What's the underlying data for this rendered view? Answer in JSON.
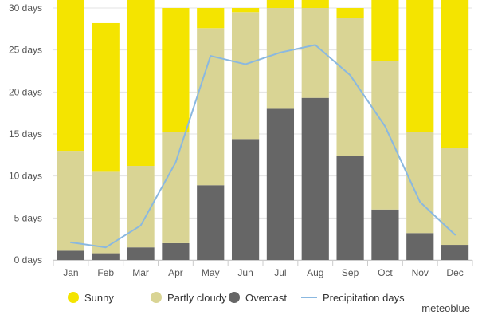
{
  "chart_data": {
    "type": "bar",
    "stacked": true,
    "categories": [
      "Jan",
      "Feb",
      "Mar",
      "Apr",
      "May",
      "Jun",
      "Jul",
      "Aug",
      "Sep",
      "Oct",
      "Nov",
      "Dec"
    ],
    "series": [
      {
        "name": "Overcast",
        "color": "#666666",
        "values": [
          1.1,
          0.8,
          1.5,
          2.0,
          8.9,
          14.4,
          18.0,
          19.3,
          12.4,
          6.0,
          3.2,
          1.8
        ]
      },
      {
        "name": "Partly cloudy",
        "color": "#d9d494",
        "values": [
          11.9,
          9.7,
          9.7,
          13.2,
          18.7,
          15.1,
          12.0,
          10.7,
          16.4,
          17.7,
          12.0,
          11.5
        ]
      },
      {
        "name": "Sunny",
        "color": "#f4e400",
        "values": [
          18.0,
          17.7,
          19.8,
          14.8,
          2.4,
          0.5,
          1.0,
          1.0,
          1.2,
          7.3,
          15.8,
          17.7
        ]
      }
    ],
    "line_series": {
      "name": "Precipitation days",
      "color": "#8ab8e0",
      "values": [
        2.1,
        1.5,
        4.1,
        11.6,
        24.3,
        23.3,
        24.7,
        25.6,
        22.0,
        15.9,
        6.9,
        3.0
      ]
    },
    "y_ticks": [
      "0 days",
      "5 days",
      "10 days",
      "15 days",
      "20 days",
      "25 days",
      "30 days"
    ],
    "ylim": [
      0,
      30
    ],
    "grid": true,
    "legend_position": "bottom"
  },
  "credit": "meteoblue"
}
